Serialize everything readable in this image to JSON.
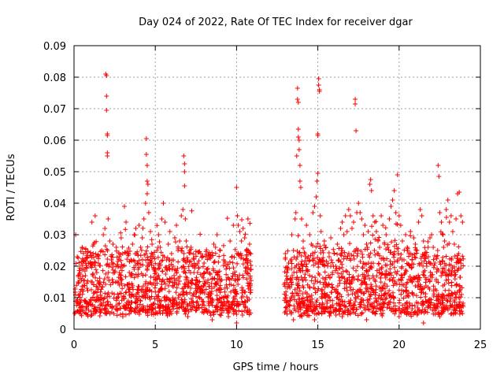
{
  "chart_data": {
    "type": "scatter",
    "title": "Day 024 of 2022, Rate Of TEC Index for receiver dgar",
    "xlabel": "GPS time / hours",
    "ylabel": "ROTI / TECUs",
    "xlim": [
      0,
      25
    ],
    "ylim": [
      0,
      0.09
    ],
    "x_ticks": [
      "0",
      "5",
      "10",
      "15",
      "20",
      "25"
    ],
    "y_ticks": [
      "0",
      "0.01",
      "0.02",
      "0.03",
      "0.04",
      "0.05",
      "0.06",
      "0.07",
      "0.08",
      "0.09"
    ],
    "grid": true,
    "marker": "+",
    "color": "#ff0000",
    "data_gap_hours": [
      10.9,
      12.9
    ],
    "series": [
      {
        "points": [
          [
            0.05,
            0.005
          ],
          [
            0.1,
            0.03
          ],
          [
            0.2,
            0.023
          ],
          [
            0.3,
            0.015
          ],
          [
            0.4,
            0.012
          ],
          [
            0.5,
            0.026
          ],
          [
            0.6,
            0.022
          ],
          [
            0.7,
            0.017
          ],
          [
            0.8,
            0.013
          ],
          [
            0.9,
            0.008
          ],
          [
            1.0,
            0.02
          ],
          [
            1.1,
            0.034
          ],
          [
            1.2,
            0.027
          ],
          [
            1.3,
            0.036
          ],
          [
            1.4,
            0.018
          ],
          [
            1.5,
            0.021
          ],
          [
            1.6,
            0.015
          ],
          [
            1.7,
            0.025
          ],
          [
            1.8,
            0.03
          ],
          [
            1.9,
            0.032
          ],
          [
            1.95,
            0.081
          ],
          [
            2.0,
            0.0805
          ],
          [
            2.0,
            0.074
          ],
          [
            2.0,
            0.0695
          ],
          [
            2.05,
            0.062
          ],
          [
            2.05,
            0.0615
          ],
          [
            2.05,
            0.056
          ],
          [
            2.05,
            0.055
          ],
          [
            2.1,
            0.035
          ],
          [
            2.2,
            0.028
          ],
          [
            2.3,
            0.022
          ],
          [
            2.4,
            0.027
          ],
          [
            2.5,
            0.018
          ],
          [
            2.6,
            0.026
          ],
          [
            2.7,
            0.02
          ],
          [
            2.8,
            0.014
          ],
          [
            2.9,
            0.029
          ],
          [
            3.0,
            0.024
          ],
          [
            3.1,
            0.039
          ],
          [
            3.2,
            0.034
          ],
          [
            3.3,
            0.024
          ],
          [
            3.4,
            0.018
          ],
          [
            3.5,
            0.022
          ],
          [
            3.6,
            0.027
          ],
          [
            3.7,
            0.03
          ],
          [
            3.8,
            0.032
          ],
          [
            3.9,
            0.021
          ],
          [
            4.0,
            0.033
          ],
          [
            4.1,
            0.026
          ],
          [
            4.2,
            0.029
          ],
          [
            4.3,
            0.035
          ],
          [
            4.4,
            0.04
          ],
          [
            4.45,
            0.0605
          ],
          [
            4.45,
            0.0555
          ],
          [
            4.5,
            0.052
          ],
          [
            4.5,
            0.047
          ],
          [
            4.5,
            0.043
          ],
          [
            4.55,
            0.046
          ],
          [
            4.6,
            0.037
          ],
          [
            4.7,
            0.031
          ],
          [
            4.8,
            0.027
          ],
          [
            4.9,
            0.023
          ],
          [
            5.0,
            0.019
          ],
          [
            5.1,
            0.025
          ],
          [
            5.2,
            0.03
          ],
          [
            5.3,
            0.026
          ],
          [
            5.4,
            0.035
          ],
          [
            5.5,
            0.04
          ],
          [
            5.6,
            0.034
          ],
          [
            5.7,
            0.022
          ],
          [
            5.8,
            0.027
          ],
          [
            5.9,
            0.031
          ],
          [
            6.0,
            0.024
          ],
          [
            6.1,
            0.02
          ],
          [
            6.2,
            0.029
          ],
          [
            6.3,
            0.033
          ],
          [
            6.4,
            0.025
          ],
          [
            6.5,
            0.028
          ],
          [
            6.6,
            0.036
          ],
          [
            6.7,
            0.038
          ],
          [
            6.75,
            0.055
          ],
          [
            6.8,
            0.0525
          ],
          [
            6.8,
            0.05
          ],
          [
            6.8,
            0.0455
          ],
          [
            6.85,
            0.035
          ],
          [
            6.9,
            0.028
          ],
          [
            7.0,
            0.022
          ],
          [
            7.2,
            0.026
          ],
          [
            7.4,
            0.02
          ],
          [
            7.6,
            0.018
          ],
          [
            7.8,
            0.024
          ],
          [
            8.0,
            0.021
          ],
          [
            8.2,
            0.019
          ],
          [
            8.4,
            0.023
          ],
          [
            8.6,
            0.027
          ],
          [
            8.8,
            0.03
          ],
          [
            9.0,
            0.025
          ],
          [
            9.2,
            0.022
          ],
          [
            9.4,
            0.02
          ],
          [
            9.6,
            0.028
          ],
          [
            9.8,
            0.033
          ],
          [
            10.0,
            0.045
          ],
          [
            10.05,
            0.036
          ],
          [
            10.1,
            0.033
          ],
          [
            10.2,
            0.031
          ],
          [
            10.3,
            0.028
          ],
          [
            10.4,
            0.032
          ],
          [
            10.5,
            0.029
          ],
          [
            10.6,
            0.025
          ],
          [
            10.7,
            0.035
          ],
          [
            10.8,
            0.027
          ],
          [
            10.0,
            0.002
          ],
          [
            9.5,
            0.004
          ],
          [
            8.5,
            0.003
          ],
          [
            7.0,
            0.004
          ],
          [
            3.0,
            0.004
          ],
          [
            1.2,
            0.005
          ],
          [
            0.3,
            0.006
          ],
          [
            6.0,
            0.005
          ],
          [
            4.0,
            0.006
          ],
          [
            13.0,
            0.024
          ],
          [
            13.1,
            0.018
          ],
          [
            13.2,
            0.021
          ],
          [
            13.3,
            0.016
          ],
          [
            13.4,
            0.03
          ],
          [
            13.5,
            0.025
          ],
          [
            13.6,
            0.035
          ],
          [
            13.65,
            0.037
          ],
          [
            13.7,
            0.055
          ],
          [
            13.75,
            0.0765
          ],
          [
            13.75,
            0.073
          ],
          [
            13.8,
            0.072
          ],
          [
            13.8,
            0.0635
          ],
          [
            13.8,
            0.061
          ],
          [
            13.85,
            0.06
          ],
          [
            13.85,
            0.057
          ],
          [
            13.9,
            0.052
          ],
          [
            13.9,
            0.047
          ],
          [
            13.95,
            0.045
          ],
          [
            14.0,
            0.035
          ],
          [
            14.1,
            0.028
          ],
          [
            14.2,
            0.024
          ],
          [
            14.3,
            0.033
          ],
          [
            14.4,
            0.023
          ],
          [
            14.5,
            0.03
          ],
          [
            14.6,
            0.027
          ],
          [
            14.7,
            0.037
          ],
          [
            14.8,
            0.039
          ],
          [
            14.9,
            0.042
          ],
          [
            14.95,
            0.047
          ],
          [
            15.0,
            0.0495
          ],
          [
            15.0,
            0.062
          ],
          [
            15.0,
            0.0615
          ],
          [
            15.05,
            0.0795
          ],
          [
            15.05,
            0.0775
          ],
          [
            15.1,
            0.076
          ],
          [
            15.1,
            0.0755
          ],
          [
            15.15,
            0.036
          ],
          [
            15.2,
            0.031
          ],
          [
            15.3,
            0.025
          ],
          [
            15.4,
            0.028
          ],
          [
            15.5,
            0.026
          ],
          [
            15.6,
            0.02
          ],
          [
            15.7,
            0.023
          ],
          [
            15.8,
            0.029
          ],
          [
            15.9,
            0.018
          ],
          [
            16.0,
            0.024
          ],
          [
            16.1,
            0.02
          ],
          [
            16.2,
            0.027
          ],
          [
            16.3,
            0.022
          ],
          [
            16.4,
            0.032
          ],
          [
            16.5,
            0.034
          ],
          [
            16.6,
            0.03
          ],
          [
            16.7,
            0.036
          ],
          [
            16.8,
            0.031
          ],
          [
            16.9,
            0.038
          ],
          [
            17.0,
            0.036
          ],
          [
            17.1,
            0.032
          ],
          [
            17.2,
            0.034
          ],
          [
            17.3,
            0.073
          ],
          [
            17.3,
            0.0715
          ],
          [
            17.35,
            0.063
          ],
          [
            17.4,
            0.037
          ],
          [
            17.5,
            0.04
          ],
          [
            17.6,
            0.037
          ],
          [
            17.7,
            0.035
          ],
          [
            17.8,
            0.03
          ],
          [
            17.9,
            0.033
          ],
          [
            18.0,
            0.027
          ],
          [
            18.1,
            0.031
          ],
          [
            18.2,
            0.046
          ],
          [
            18.25,
            0.0475
          ],
          [
            18.3,
            0.044
          ],
          [
            18.4,
            0.036
          ],
          [
            18.5,
            0.034
          ],
          [
            18.6,
            0.031
          ],
          [
            18.7,
            0.028
          ],
          [
            18.8,
            0.026
          ],
          [
            18.9,
            0.036
          ],
          [
            19.0,
            0.033
          ],
          [
            19.1,
            0.027
          ],
          [
            19.2,
            0.03
          ],
          [
            19.3,
            0.026
          ],
          [
            19.4,
            0.035
          ],
          [
            19.5,
            0.039
          ],
          [
            19.6,
            0.041
          ],
          [
            19.7,
            0.044
          ],
          [
            19.8,
            0.037
          ],
          [
            19.9,
            0.049
          ],
          [
            20.0,
            0.036
          ],
          [
            20.1,
            0.033
          ],
          [
            20.2,
            0.028
          ],
          [
            20.3,
            0.022
          ],
          [
            20.4,
            0.03
          ],
          [
            20.5,
            0.026
          ],
          [
            20.6,
            0.024
          ],
          [
            20.7,
            0.031
          ],
          [
            20.8,
            0.022
          ],
          [
            20.9,
            0.029
          ],
          [
            21.0,
            0.027
          ],
          [
            21.1,
            0.025
          ],
          [
            21.2,
            0.034
          ],
          [
            21.3,
            0.038
          ],
          [
            21.4,
            0.036
          ],
          [
            21.5,
            0.028
          ],
          [
            21.6,
            0.024
          ],
          [
            21.7,
            0.02
          ],
          [
            21.8,
            0.023
          ],
          [
            21.9,
            0.029
          ],
          [
            22.0,
            0.03
          ],
          [
            22.1,
            0.026
          ],
          [
            22.2,
            0.021
          ],
          [
            22.3,
            0.023
          ],
          [
            22.4,
            0.052
          ],
          [
            22.45,
            0.0485
          ],
          [
            22.5,
            0.037
          ],
          [
            22.6,
            0.034
          ],
          [
            22.7,
            0.03
          ],
          [
            22.8,
            0.028
          ],
          [
            22.9,
            0.038
          ],
          [
            23.0,
            0.041
          ],
          [
            23.1,
            0.034
          ],
          [
            23.2,
            0.036
          ],
          [
            23.3,
            0.031
          ],
          [
            23.4,
            0.027
          ],
          [
            23.5,
            0.035
          ],
          [
            23.6,
            0.043
          ],
          [
            23.7,
            0.0435
          ],
          [
            23.8,
            0.036
          ],
          [
            23.9,
            0.034
          ],
          [
            21.5,
            0.002
          ],
          [
            20.0,
            0.004
          ],
          [
            18.0,
            0.003
          ],
          [
            16.5,
            0.004
          ],
          [
            14.8,
            0.003
          ],
          [
            13.5,
            0.003
          ],
          [
            22.5,
            0.004
          ],
          [
            23.9,
            0.005
          ],
          [
            19.0,
            0.005
          ],
          [
            17.0,
            0.005
          ]
        ]
      }
    ]
  }
}
